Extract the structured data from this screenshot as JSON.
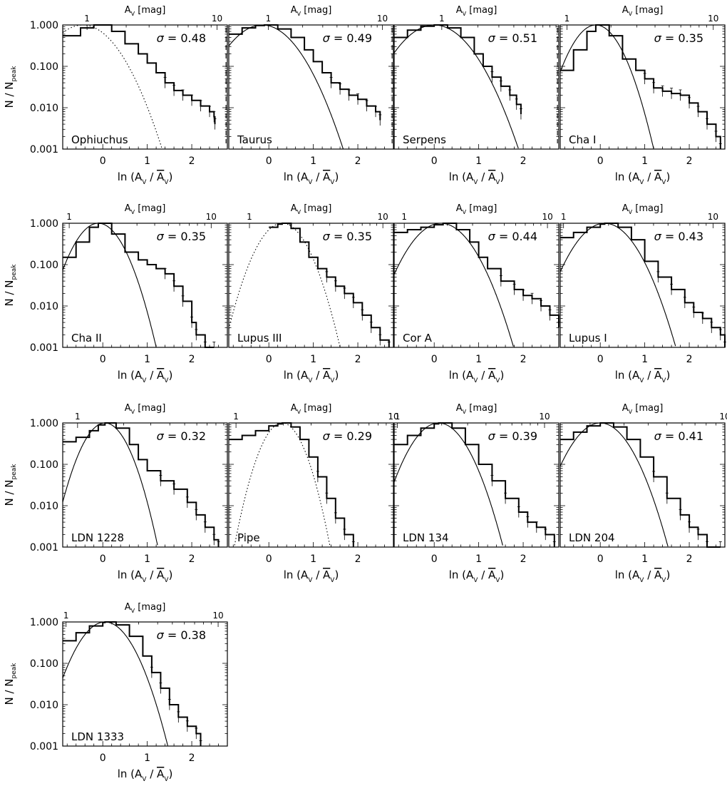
{
  "figure": {
    "ylabel_main": "N / N",
    "ylabel_sub": "peak",
    "xlabel_main": "ln (A",
    "xlabel_sub": "V",
    "xlabel_mid": " / ",
    "xlabel_bar": "A",
    "xlabel_end": ")",
    "top_label_main": "A",
    "top_label_sub": "V",
    "top_label_unit": " [mag]",
    "top_ticks": [
      "1",
      "10"
    ],
    "y_ticks": [
      "1.000",
      "0.100",
      "0.010",
      "0.001"
    ],
    "sigma_prefix": "σ = "
  },
  "chart_data": [
    {
      "type": "line",
      "name": "Ophiuchus",
      "sigma": "0.48",
      "fit": "dotted",
      "mu": -0.45,
      "ext_mag": [
        0.65,
        12.0
      ],
      "threshold_mag": 12.0,
      "xlim": [
        -0.9,
        2.8
      ],
      "ylim": [
        0.001,
        1.0
      ],
      "yscale": "log",
      "x_ticks": [
        0,
        1,
        2
      ],
      "x": [
        -0.9,
        -0.5,
        -0.2,
        0.2,
        0.5,
        0.8,
        1.0,
        1.2,
        1.4,
        1.6,
        1.8,
        2.0,
        2.2,
        2.4,
        2.5,
        2.52
      ],
      "y": [
        0.55,
        0.85,
        1.0,
        0.7,
        0.35,
        0.2,
        0.12,
        0.07,
        0.04,
        0.026,
        0.02,
        0.015,
        0.011,
        0.008,
        0.006,
        0.004
      ]
    },
    {
      "type": "line",
      "name": "Taurus",
      "sigma": "0.49",
      "fit": "solid",
      "mu": -0.15,
      "ext_mag": [
        0.45,
        12.5
      ],
      "threshold_mag": 12.5,
      "xlim": [
        -0.9,
        2.8
      ],
      "ylim": [
        0.001,
        1.0
      ],
      "yscale": "log",
      "x_ticks": [
        0,
        1,
        2
      ],
      "x": [
        -0.9,
        -0.6,
        -0.3,
        -0.1,
        0.2,
        0.5,
        0.8,
        1.0,
        1.2,
        1.4,
        1.6,
        1.8,
        2.0,
        2.2,
        2.4,
        2.5
      ],
      "y": [
        0.6,
        0.85,
        0.97,
        1.0,
        0.8,
        0.5,
        0.25,
        0.13,
        0.07,
        0.04,
        0.028,
        0.02,
        0.016,
        0.011,
        0.008,
        0.005
      ]
    },
    {
      "type": "line",
      "name": "Serpens",
      "sigma": "0.51",
      "fit": "solid",
      "mu": 0.0,
      "ext_mag": [
        0.4,
        9.5
      ],
      "threshold_mag": 9.5,
      "xlim": [
        -0.9,
        2.8
      ],
      "ylim": [
        0.001,
        1.0
      ],
      "yscale": "log",
      "x_ticks": [
        0,
        1,
        2
      ],
      "x": [
        -0.9,
        -0.6,
        -0.3,
        0.0,
        0.3,
        0.6,
        0.9,
        1.1,
        1.3,
        1.5,
        1.7,
        1.85,
        1.95
      ],
      "y": [
        0.5,
        0.75,
        0.93,
        1.0,
        0.85,
        0.5,
        0.2,
        0.1,
        0.055,
        0.033,
        0.02,
        0.012,
        0.007
      ]
    },
    {
      "type": "line",
      "name": "Cha I",
      "sigma": "0.35",
      "fit": "solid",
      "mu": -0.1,
      "ext_mag": [
        0.9,
        12.0
      ],
      "threshold_mag": null,
      "xlim": [
        -0.9,
        2.8
      ],
      "ylim": [
        0.001,
        1.0
      ],
      "yscale": "log",
      "x_ticks": [
        0,
        1,
        2
      ],
      "x": [
        -0.9,
        -0.6,
        -0.3,
        -0.1,
        0.2,
        0.5,
        0.8,
        1.0,
        1.2,
        1.4,
        1.6,
        1.8,
        2.0,
        2.2,
        2.4,
        2.6,
        2.7
      ],
      "y": [
        0.08,
        0.25,
        0.7,
        1.0,
        0.55,
        0.15,
        0.08,
        0.05,
        0.03,
        0.025,
        0.022,
        0.02,
        0.013,
        0.008,
        0.004,
        0.002,
        0.001
      ]
    },
    {
      "type": "line",
      "name": "Cha II",
      "sigma": "0.35",
      "fit": "solid",
      "mu": -0.1,
      "ext_mag": [
        0.9,
        13.0
      ],
      "threshold_mag": null,
      "xlim": [
        -0.9,
        2.8
      ],
      "ylim": [
        0.001,
        1.0
      ],
      "yscale": "log",
      "x_ticks": [
        0,
        1,
        2
      ],
      "x": [
        -0.9,
        -0.6,
        -0.3,
        -0.1,
        0.2,
        0.5,
        0.8,
        1.0,
        1.2,
        1.4,
        1.6,
        1.8,
        2.0,
        2.1,
        2.3,
        2.5
      ],
      "y": [
        0.15,
        0.35,
        0.8,
        1.0,
        0.55,
        0.2,
        0.13,
        0.1,
        0.08,
        0.06,
        0.03,
        0.013,
        0.004,
        0.002,
        0.001,
        0.001
      ]
    },
    {
      "type": "line",
      "name": "Lupus III",
      "sigma": "0.35",
      "fit": "dotted",
      "mu": 0.3,
      "ext_mag": [
        0.7,
        12.0
      ],
      "threshold_mag": null,
      "xlim": [
        -0.9,
        2.8
      ],
      "ylim": [
        0.001,
        1.0
      ],
      "yscale": "log",
      "x_ticks": [
        0,
        1,
        2
      ],
      "x": [
        0.0,
        0.2,
        0.3,
        0.5,
        0.7,
        0.9,
        1.1,
        1.3,
        1.5,
        1.7,
        1.9,
        2.1,
        2.3,
        2.5,
        2.7
      ],
      "y": [
        0.8,
        0.95,
        1.0,
        0.75,
        0.35,
        0.15,
        0.08,
        0.05,
        0.03,
        0.02,
        0.012,
        0.006,
        0.003,
        0.0015,
        0.001
      ]
    },
    {
      "type": "line",
      "name": "Cor A",
      "sigma": "0.44",
      "fit": "solid",
      "mu": 0.15,
      "ext_mag": [
        0.85,
        12.0
      ],
      "threshold_mag": null,
      "xlim": [
        -0.9,
        2.8
      ],
      "ylim": [
        0.001,
        1.0
      ],
      "yscale": "log",
      "x_ticks": [
        0,
        1,
        2
      ],
      "x": [
        -0.9,
        -0.6,
        -0.3,
        0.0,
        0.2,
        0.5,
        0.8,
        1.0,
        1.2,
        1.5,
        1.8,
        2.0,
        2.2,
        2.4,
        2.6,
        2.8
      ],
      "y": [
        0.6,
        0.7,
        0.8,
        0.92,
        1.0,
        0.7,
        0.35,
        0.15,
        0.08,
        0.04,
        0.025,
        0.018,
        0.015,
        0.01,
        0.006,
        0.003
      ]
    },
    {
      "type": "line",
      "name": "Lupus I",
      "sigma": "0.43",
      "fit": "solid",
      "mu": 0.1,
      "ext_mag": [
        0.95,
        12.0
      ],
      "threshold_mag": null,
      "xlim": [
        -0.9,
        2.8
      ],
      "ylim": [
        0.001,
        1.0
      ],
      "yscale": "log",
      "x_ticks": [
        0,
        1,
        2
      ],
      "x": [
        -0.9,
        -0.6,
        -0.3,
        0.0,
        0.1,
        0.4,
        0.7,
        1.0,
        1.3,
        1.6,
        1.9,
        2.1,
        2.3,
        2.5,
        2.7,
        2.8
      ],
      "y": [
        0.45,
        0.6,
        0.8,
        0.95,
        1.0,
        0.8,
        0.4,
        0.12,
        0.05,
        0.025,
        0.012,
        0.007,
        0.005,
        0.003,
        0.002,
        0.001
      ]
    },
    {
      "type": "line",
      "name": "LDN 1228",
      "sigma": "0.32",
      "fit": "solid",
      "mu": 0.05,
      "ext_mag": [
        0.8,
        9.5
      ],
      "threshold_mag": null,
      "xlim": [
        -0.9,
        2.8
      ],
      "ylim": [
        0.001,
        1.0
      ],
      "yscale": "log",
      "x_ticks": [
        0,
        1,
        2
      ],
      "x": [
        -0.9,
        -0.6,
        -0.3,
        -0.1,
        0.05,
        0.3,
        0.6,
        0.8,
        1.0,
        1.3,
        1.6,
        1.9,
        2.1,
        2.3,
        2.5,
        2.6
      ],
      "y": [
        0.35,
        0.45,
        0.65,
        0.9,
        1.0,
        0.75,
        0.3,
        0.13,
        0.07,
        0.04,
        0.025,
        0.012,
        0.006,
        0.003,
        0.0015,
        0.001
      ]
    },
    {
      "type": "line",
      "name": "Pipe",
      "sigma": "0.29",
      "fit": "dotted",
      "mu": 0.3,
      "ext_mag": [
        0.9,
        10.0
      ],
      "threshold_mag": null,
      "xlim": [
        -0.9,
        2.8
      ],
      "ylim": [
        0.001,
        1.0
      ],
      "yscale": "log",
      "x_ticks": [
        0,
        1,
        2
      ],
      "x": [
        -0.9,
        -0.6,
        -0.3,
        0.0,
        0.2,
        0.3,
        0.5,
        0.7,
        0.9,
        1.1,
        1.3,
        1.5,
        1.7,
        1.9
      ],
      "y": [
        0.4,
        0.5,
        0.65,
        0.85,
        0.95,
        1.0,
        0.8,
        0.4,
        0.15,
        0.05,
        0.015,
        0.005,
        0.002,
        0.001
      ]
    },
    {
      "type": "line",
      "name": "LDN 134",
      "sigma": "0.39",
      "fit": "solid",
      "mu": 0.1,
      "ext_mag": [
        0.95,
        12.5
      ],
      "threshold_mag": null,
      "xlim": [
        -0.9,
        2.8
      ],
      "ylim": [
        0.001,
        1.0
      ],
      "yscale": "log",
      "x_ticks": [
        0,
        1,
        2
      ],
      "x": [
        -0.9,
        -0.6,
        -0.3,
        0.0,
        0.1,
        0.4,
        0.7,
        1.0,
        1.3,
        1.6,
        1.9,
        2.1,
        2.3,
        2.5,
        2.7
      ],
      "y": [
        0.3,
        0.5,
        0.75,
        0.95,
        1.0,
        0.75,
        0.3,
        0.1,
        0.04,
        0.015,
        0.007,
        0.004,
        0.003,
        0.002,
        0.001
      ]
    },
    {
      "type": "line",
      "name": "LDN 204",
      "sigma": "0.41",
      "fit": "solid",
      "mu": 0.0,
      "ext_mag": [
        1.4,
        10.0
      ],
      "threshold_mag": null,
      "xlim": [
        -0.9,
        2.8
      ],
      "ylim": [
        0.001,
        1.0
      ],
      "yscale": "log",
      "x_ticks": [
        0,
        1,
        2
      ],
      "x": [
        -0.9,
        -0.6,
        -0.3,
        0.0,
        0.3,
        0.6,
        0.9,
        1.2,
        1.5,
        1.8,
        2.0,
        2.2,
        2.4,
        2.7
      ],
      "y": [
        0.4,
        0.6,
        0.85,
        1.0,
        0.8,
        0.4,
        0.15,
        0.05,
        0.015,
        0.006,
        0.003,
        0.002,
        0.001,
        0.001
      ]
    },
    {
      "type": "line",
      "name": "LDN 1333",
      "sigma": "0.38",
      "fit": "solid",
      "mu": 0.05,
      "ext_mag": [
        0.95,
        11.5
      ],
      "threshold_mag": null,
      "xlim": [
        -0.9,
        2.8
      ],
      "ylim": [
        0.001,
        1.0
      ],
      "yscale": "log",
      "x_ticks": [
        0,
        1,
        2
      ],
      "x": [
        -0.9,
        -0.6,
        -0.3,
        0.0,
        0.05,
        0.3,
        0.6,
        0.9,
        1.1,
        1.3,
        1.5,
        1.7,
        1.9,
        2.1,
        2.2
      ],
      "y": [
        0.35,
        0.55,
        0.8,
        0.97,
        1.0,
        0.85,
        0.45,
        0.15,
        0.06,
        0.025,
        0.01,
        0.005,
        0.003,
        0.002,
        0.001
      ]
    }
  ]
}
